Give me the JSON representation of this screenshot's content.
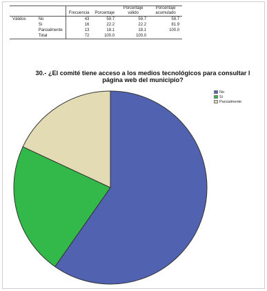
{
  "table": {
    "headers": [
      "Frecuencia",
      "Porcentaje",
      "Porcentaje válido",
      "Porcentaje acumulado"
    ],
    "group_label": "Válidos",
    "rows": [
      {
        "label": "No",
        "frecuencia": "43",
        "porcentaje": "59.7",
        "valido": "59.7",
        "acumulado": "59.7"
      },
      {
        "label": "Si",
        "frecuencia": "16",
        "porcentaje": "22.2",
        "valido": "22.2",
        "acumulado": "81.9"
      },
      {
        "label": "Parcialmente",
        "frecuencia": "13",
        "porcentaje": "18.1",
        "valido": "18.1",
        "acumulado": "100.0"
      },
      {
        "label": "Total",
        "frecuencia": "72",
        "porcentaje": "100.0",
        "valido": "100.0",
        "acumulado": ""
      }
    ]
  },
  "chart_data": {
    "type": "pie",
    "title_line1": "30.- ¿El comité tiene acceso a los medios tecnológicos para consultar l",
    "title_line2": "página web del municipio?",
    "categories": [
      "No",
      "Si",
      "Parcialmente"
    ],
    "values": [
      43,
      16,
      13
    ],
    "colors": [
      "#5062b0",
      "#33b84a",
      "#e2dbb4"
    ],
    "legend_position": "top-right"
  }
}
